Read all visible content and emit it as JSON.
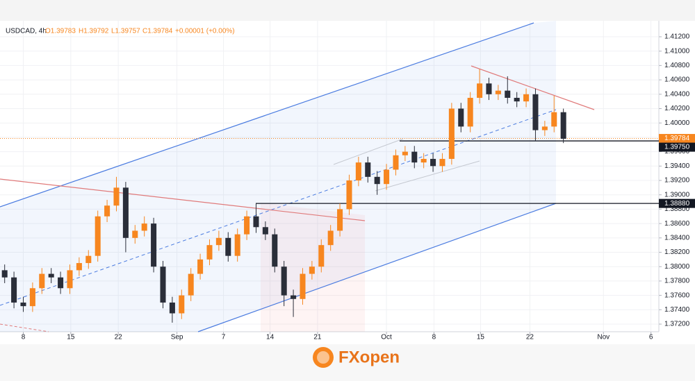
{
  "chart_data": {
    "type": "candlestick",
    "header": [
      "USDCAD, 4h",
      "O1.39783",
      "H1.39792",
      "L1.39757",
      "C1.39784",
      "+0.00001 (+0.00%)"
    ],
    "brand": "FXopen",
    "up_color": "#f7861f",
    "down_color": "#2a2e39",
    "x": [
      0.5,
      1.5,
      2.5,
      3.5,
      4.5,
      5.5,
      6.5,
      7.5,
      8.5,
      9.5,
      10.5,
      11.5,
      12.5,
      13.5,
      14.5,
      15.5,
      16.5,
      17.5,
      18.5,
      19.5,
      20.5,
      21.5,
      22.5,
      23.5,
      24.5,
      25.5,
      26.5,
      27.5,
      28.5,
      29.5,
      30.5,
      31.5,
      32.5,
      33.5,
      34.5,
      35.5,
      36.5,
      37.5,
      38.5,
      39.5,
      40.5,
      41.5,
      42.5,
      43.5,
      44.5,
      45.5,
      46.5,
      47.5,
      48.5,
      49.5,
      50.5,
      51.5,
      52.5,
      53.5,
      54.5,
      55.5,
      56.5,
      57.5,
      58.5,
      59.5,
      60.5
    ],
    "open": [
      1.3795,
      1.3785,
      1.375,
      1.3745,
      1.377,
      1.379,
      1.3785,
      1.377,
      1.3795,
      1.3805,
      1.3815,
      1.387,
      1.3885,
      1.391,
      1.384,
      1.385,
      1.386,
      1.38,
      1.375,
      1.3735,
      1.376,
      1.379,
      1.381,
      1.383,
      1.384,
      1.3815,
      1.3845,
      1.387,
      1.3855,
      1.3845,
      1.38,
      1.376,
      1.3755,
      1.379,
      1.38,
      1.383,
      1.385,
      1.388,
      1.392,
      1.3945,
      1.3925,
      1.3915,
      1.3935,
      1.3955,
      1.396,
      1.3945,
      1.395,
      1.394,
      1.395,
      1.402,
      1.3995,
      1.4035,
      1.4055,
      1.404,
      1.4045,
      1.4035,
      1.403,
      1.404,
      1.399,
      1.3995,
      1.4015
    ],
    "high": [
      1.3803,
      1.3793,
      1.3758,
      1.3778,
      1.3798,
      1.3798,
      1.3793,
      1.3803,
      1.3813,
      1.3823,
      1.3878,
      1.3893,
      1.3925,
      1.3918,
      1.3858,
      1.387,
      1.3868,
      1.3808,
      1.3758,
      1.3768,
      1.3798,
      1.3818,
      1.3838,
      1.385,
      1.3848,
      1.3853,
      1.3878,
      1.3888,
      1.3863,
      1.3853,
      1.3808,
      1.3768,
      1.3798,
      1.3808,
      1.3838,
      1.3858,
      1.3888,
      1.3928,
      1.3953,
      1.3953,
      1.3933,
      1.3943,
      1.3963,
      1.3968,
      1.3968,
      1.3958,
      1.3958,
      1.3958,
      1.4028,
      1.4028,
      1.4043,
      1.4075,
      1.4063,
      1.4053,
      1.4065,
      1.4043,
      1.4048,
      1.4048,
      1.4003,
      1.4038,
      1.402
    ],
    "low": [
      1.3777,
      1.3742,
      1.3737,
      1.3737,
      1.3762,
      1.3777,
      1.3762,
      1.3762,
      1.3787,
      1.3797,
      1.3807,
      1.3862,
      1.3877,
      1.382,
      1.3832,
      1.3842,
      1.3792,
      1.3742,
      1.3722,
      1.3727,
      1.3752,
      1.3782,
      1.3802,
      1.3822,
      1.3807,
      1.3807,
      1.3837,
      1.3847,
      1.3837,
      1.3792,
      1.3745,
      1.373,
      1.3747,
      1.3782,
      1.3792,
      1.3822,
      1.3842,
      1.3872,
      1.3912,
      1.3917,
      1.39,
      1.3907,
      1.3927,
      1.3947,
      1.3937,
      1.3937,
      1.3932,
      1.3932,
      1.3942,
      1.3987,
      1.3987,
      1.4027,
      1.4032,
      1.4032,
      1.4027,
      1.4022,
      1.4022,
      1.3975,
      1.3982,
      1.3987,
      1.3972
    ],
    "close": [
      1.3785,
      1.375,
      1.3745,
      1.377,
      1.379,
      1.3785,
      1.377,
      1.3795,
      1.3805,
      1.3815,
      1.387,
      1.3885,
      1.391,
      1.384,
      1.385,
      1.386,
      1.38,
      1.375,
      1.3735,
      1.376,
      1.379,
      1.381,
      1.383,
      1.384,
      1.3815,
      1.3845,
      1.387,
      1.3855,
      1.3845,
      1.38,
      1.376,
      1.3755,
      1.379,
      1.38,
      1.383,
      1.385,
      1.388,
      1.392,
      1.3945,
      1.3925,
      1.3915,
      1.3935,
      1.3955,
      1.396,
      1.3945,
      1.395,
      1.394,
      1.395,
      1.402,
      1.3995,
      1.4035,
      1.4055,
      1.404,
      1.4045,
      1.4035,
      1.403,
      1.404,
      1.399,
      1.3995,
      1.4015,
      1.3978
    ],
    "xlim": [
      0,
      70.75
    ],
    "xticks": [
      {
        "value": 2.5,
        "label": "8"
      },
      {
        "value": 7.6,
        "label": "15"
      },
      {
        "value": 12.7,
        "label": "22"
      },
      {
        "value": 19,
        "label": "Sep"
      },
      {
        "value": 24,
        "label": "7"
      },
      {
        "value": 29,
        "label": "14"
      },
      {
        "value": 34.1,
        "label": "21"
      },
      {
        "value": 41.5,
        "label": "Oct"
      },
      {
        "value": 46.6,
        "label": "8"
      },
      {
        "value": 51.6,
        "label": "15"
      },
      {
        "value": 56.9,
        "label": "22"
      },
      {
        "value": 64.8,
        "label": "Nov"
      },
      {
        "value": 69.9,
        "label": "6"
      }
    ],
    "ylim": [
      1.37094,
      1.41422
    ],
    "yticks": [
      {
        "value": 1.372,
        "label": "1.37200"
      },
      {
        "value": 1.374,
        "label": "1.37400"
      },
      {
        "value": 1.376,
        "label": "1.37600"
      },
      {
        "value": 1.378,
        "label": "1.37800"
      },
      {
        "value": 1.38,
        "label": "1.38000"
      },
      {
        "value": 1.382,
        "label": "1.38200"
      },
      {
        "value": 1.384,
        "label": "1.38400"
      },
      {
        "value": 1.386,
        "label": "1.38600"
      },
      {
        "value": 1.388,
        "label": "1.38800"
      },
      {
        "value": 1.39,
        "label": "1.39000"
      },
      {
        "value": 1.392,
        "label": "1.39200"
      },
      {
        "value": 1.394,
        "label": "1.39400"
      },
      {
        "value": 1.396,
        "label": "1.39600"
      },
      {
        "value": 1.398,
        "label": "1.39800"
      },
      {
        "value": 1.4,
        "label": "1.40000"
      },
      {
        "value": 1.402,
        "label": "1.40200"
      },
      {
        "value": 1.404,
        "label": "1.40400"
      },
      {
        "value": 1.406,
        "label": "1.40600"
      },
      {
        "value": 1.408,
        "label": "1.40800"
      },
      {
        "value": 1.41,
        "label": "1.41000"
      },
      {
        "value": 1.412,
        "label": "1.41200"
      }
    ],
    "grid": true,
    "last_price": {
      "value": 1.39784,
      "label": "1.39784",
      "color": "#f7861f"
    },
    "levels": [
      {
        "value": 1.3975,
        "label": "1.39750",
        "color": "#131722"
      },
      {
        "value": 1.3888,
        "label": "1.38880",
        "color": "#131722"
      }
    ]
  }
}
